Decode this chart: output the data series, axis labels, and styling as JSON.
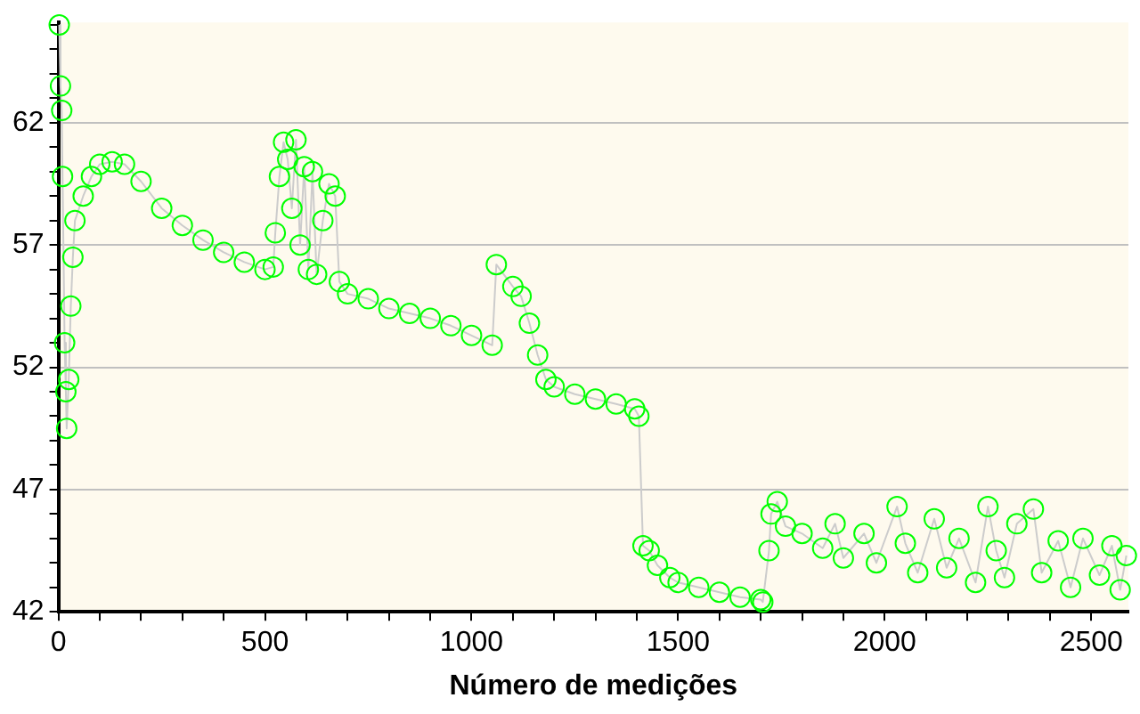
{
  "chart_data": {
    "type": "line",
    "xlabel": "Número de medições",
    "marker": "circle",
    "grid": "y",
    "legend": false,
    "xlim": [
      0,
      2590
    ],
    "ylim": [
      42,
      66.1
    ],
    "xticks": [
      0,
      {
        "value": 100,
        "label": null
      },
      {
        "value": 200,
        "label": null
      },
      {
        "value": 300,
        "label": null
      },
      {
        "value": 400,
        "label": null
      },
      500,
      {
        "value": 600,
        "label": null
      },
      {
        "value": 700,
        "label": null
      },
      {
        "value": 800,
        "label": null
      },
      {
        "value": 900,
        "label": null
      },
      1000,
      {
        "value": 1100,
        "label": null
      },
      {
        "value": 1200,
        "label": null
      },
      {
        "value": 1300,
        "label": null
      },
      {
        "value": 1400,
        "label": null
      },
      1500,
      {
        "value": 1600,
        "label": null
      },
      {
        "value": 1700,
        "label": null
      },
      {
        "value": 1800,
        "label": null
      },
      {
        "value": 1900,
        "label": null
      },
      2000,
      {
        "value": 2100,
        "label": null
      },
      {
        "value": 2200,
        "label": null
      },
      {
        "value": 2300,
        "label": null
      },
      {
        "value": 2400,
        "label": null
      },
      2500
    ],
    "yticks": [
      42,
      {
        "value": 43,
        "label": null
      },
      {
        "value": 44,
        "label": null
      },
      {
        "value": 45,
        "label": null
      },
      {
        "value": 46,
        "label": null
      },
      47,
      {
        "value": 48,
        "label": null
      },
      {
        "value": 49,
        "label": null
      },
      {
        "value": 50,
        "label": null
      },
      {
        "value": 51,
        "label": null
      },
      52,
      {
        "value": 53,
        "label": null
      },
      {
        "value": 54,
        "label": null
      },
      {
        "value": 55,
        "label": null
      },
      {
        "value": 56,
        "label": null
      },
      57,
      {
        "value": 58,
        "label": null
      },
      {
        "value": 59,
        "label": null
      },
      {
        "value": 60,
        "label": null
      },
      {
        "value": 61,
        "label": null
      },
      62,
      {
        "value": 63,
        "label": null
      },
      {
        "value": 64,
        "label": null
      },
      {
        "value": 65,
        "label": null
      },
      {
        "value": 66,
        "label": null
      }
    ],
    "series": [
      {
        "color": "#cccccc",
        "colors": [
          "#00ff00",
          "#00ff00",
          "#00ff00",
          "#00ff00",
          "#00ff00",
          "#00ff00",
          "#00ff00",
          "#00ff00",
          "#00ff00",
          "#00ff00",
          "#00ff00",
          "#00ff00",
          "#00ff00",
          "#00ff00",
          "#00ff00",
          "#00ff00",
          "#00ff00",
          "#00ff00",
          "#00ff00",
          "#00ff00",
          "#00ff00",
          "#00ff00",
          "#00ff00",
          "#00ff00",
          "#00ff00",
          "#00ff00",
          "#00ff00",
          "#00ff00",
          "#00ff00",
          "#00ff00",
          "#00ff00",
          "#00ff00",
          "#00ff00",
          "#00ff00",
          "#00ff00",
          "#00ff00",
          "#00ff00",
          "#00ff00",
          "#00ff00",
          "#00ff00",
          "#00ff00",
          "#00ff00",
          "#00ff00",
          "#00ff00",
          "#00ff00",
          "#00ff00",
          "#00ff00",
          "#00ff00",
          "#00ff00",
          "#00ff00",
          "#00ff00",
          "#00ff00",
          "#00ff00",
          "#00ff00",
          "#00ff00",
          "#00ff00",
          "#00ff00",
          "#00ff00",
          "#00ff00",
          "#00ff00",
          "#00ff00",
          "#00ff00",
          "#00ff00",
          "#00ff00",
          "#00ff00",
          "#00ff00",
          "#00ff00",
          "#00ff00",
          "#00ff00",
          "#00ff00",
          "#00ff00",
          "#00ff00",
          "#00ff00",
          "#00ff00",
          "#00ff00",
          "#00ff00",
          "#00ff00",
          "#00ff00",
          "#00ff00",
          "#00ff00",
          "#00ff00",
          "#00ff00",
          "#00ff00",
          "#00ff00",
          "#00ff00",
          "#00ff00",
          "#00ff00",
          "#00ff00",
          "#00ff00",
          "#00ff00",
          "#00ff00",
          "#00ff00",
          "#00ff00",
          "#00ff00",
          "#00ff00",
          "#00ff00",
          "#00ff00",
          "#00ff00",
          "#00ff00"
        ],
        "x": [
          2,
          5,
          8,
          10,
          15,
          18,
          20,
          25,
          30,
          35,
          40,
          60,
          80,
          100,
          130,
          160,
          200,
          250,
          300,
          350,
          400,
          450,
          500,
          520,
          525,
          535,
          545,
          555,
          565,
          575,
          585,
          595,
          605,
          615,
          625,
          640,
          655,
          670,
          680,
          700,
          750,
          800,
          850,
          900,
          950,
          1000,
          1050,
          1060,
          1100,
          1120,
          1140,
          1160,
          1180,
          1200,
          1250,
          1300,
          1350,
          1395,
          1405,
          1415,
          1430,
          1450,
          1480,
          1500,
          1550,
          1600,
          1650,
          1700,
          1705,
          1720,
          1725,
          1740,
          1760,
          1800,
          1850,
          1880,
          1900,
          1950,
          1980,
          2030,
          2050,
          2080,
          2120,
          2150,
          2180,
          2220,
          2250,
          2270,
          2290,
          2320,
          2360,
          2380,
          2420,
          2450,
          2480,
          2520,
          2550,
          2570,
          2585
        ],
        "values": [
          66,
          63.5,
          62.5,
          59.8,
          53,
          51,
          49.5,
          51.5,
          54.5,
          56.5,
          58,
          59,
          59.8,
          60.3,
          60.4,
          60.3,
          59.6,
          58.5,
          57.8,
          57.2,
          56.7,
          56.3,
          56,
          56.1,
          57.5,
          59.8,
          61.2,
          60.5,
          58.5,
          61.3,
          57,
          60.2,
          56,
          60,
          55.8,
          58,
          59.5,
          59,
          55.5,
          55,
          54.8,
          54.4,
          54.2,
          54,
          53.7,
          53.3,
          52.9,
          56.2,
          55.3,
          54.9,
          53.8,
          52.5,
          51.5,
          51.2,
          50.9,
          50.7,
          50.5,
          50.3,
          50,
          44.7,
          44.5,
          43.9,
          43.4,
          43.2,
          43,
          42.8,
          42.6,
          42.5,
          42.4,
          44.5,
          46,
          46.5,
          45.5,
          45.2,
          44.6,
          45.6,
          44.2,
          45.2,
          44,
          46.3,
          44.8,
          43.6,
          45.8,
          43.8,
          45,
          43.2,
          46.3,
          44.5,
          43.4,
          45.6,
          46.2,
          43.6,
          44.9,
          43,
          45,
          43.5,
          44.7,
          42.9,
          44.3
        ]
      }
    ]
  }
}
